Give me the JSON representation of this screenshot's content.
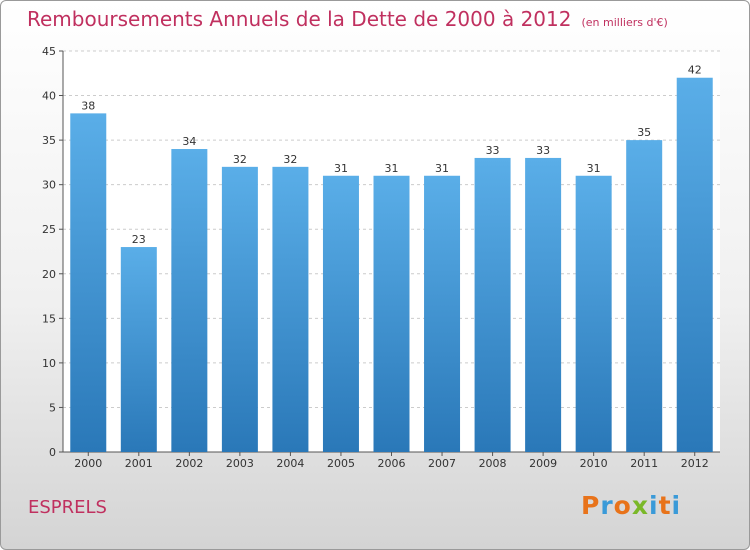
{
  "header": {
    "title": "Remboursements Annuels de la Dette de 2000 à 2012",
    "unit": "(en milliers d'€)"
  },
  "footer": {
    "commune": "ESPRELS",
    "logo": "Proxiti"
  },
  "colors": {
    "title": "#c0305f",
    "bar_top": "#5aaee8",
    "bar_bottom": "#2a78b8",
    "grid": "#cccccc",
    "logo_letters": [
      "#e8731a",
      "#3a9ad8",
      "#e8731a",
      "#7ab828",
      "#3a9ad8",
      "#e8731a",
      "#3a9ad8"
    ]
  },
  "chart_data": {
    "type": "bar",
    "title": "Remboursements Annuels de la Dette de 2000 à 2012",
    "xlabel": "",
    "ylabel": "",
    "categories": [
      "2000",
      "2001",
      "2002",
      "2003",
      "2004",
      "2005",
      "2006",
      "2007",
      "2008",
      "2009",
      "2010",
      "2011",
      "2012"
    ],
    "values": [
      38,
      23,
      34,
      32,
      32,
      31,
      31,
      31,
      33,
      33,
      31,
      35,
      42
    ],
    "ylim": [
      0,
      45
    ],
    "yticks": [
      0,
      5,
      10,
      15,
      20,
      25,
      30,
      35,
      40,
      45
    ],
    "grid": true,
    "legend": "none"
  }
}
